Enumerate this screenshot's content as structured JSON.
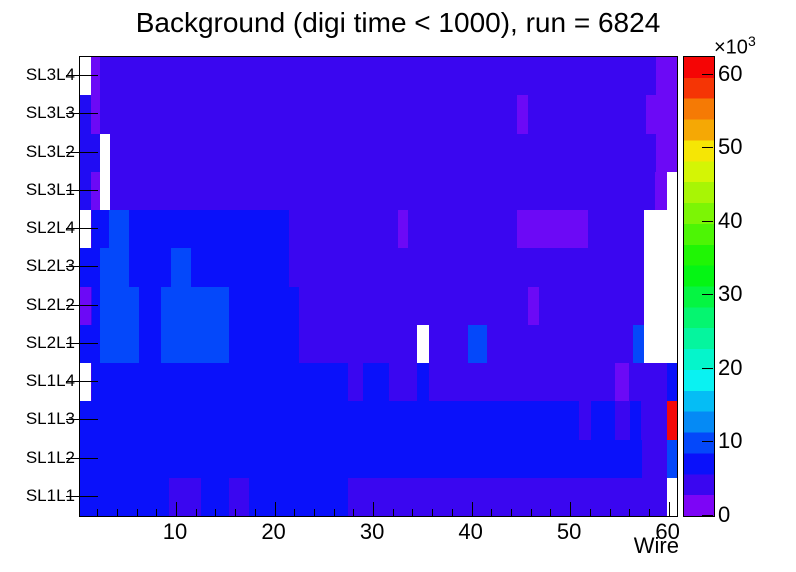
{
  "title": "Background (digi time < 1000), run = 6824",
  "x_axis": {
    "label": "Wire",
    "major_ticks": [
      10,
      20,
      30,
      40,
      50,
      60
    ],
    "minor_tick_step": 2
  },
  "y_axis": {
    "labels_top_to_bottom": [
      "SL3L4",
      "SL3L3",
      "SL3L2",
      "SL3L1",
      "SL2L4",
      "SL2L3",
      "SL2L2",
      "SL2L1",
      "SL1L4",
      "SL1L3",
      "SL1L2",
      "SL1L1"
    ]
  },
  "z_axis": {
    "scale_label": "×10",
    "scale_exponent": "3",
    "ticks": [
      0,
      10,
      20,
      30,
      40,
      50,
      60
    ]
  },
  "colors": {
    "indigo": "#3a06f0",
    "violet": "#6c09f6",
    "blue2": "#200cf3",
    "blue": "#0a11fa",
    "royal": "#0448fa",
    "red": "#f50808",
    "white": "#ffffff",
    "frame": "#000000",
    "background": "#ffffff"
  },
  "chart_data": {
    "type": "heatmap",
    "title": "Background (digi time < 1000), run = 6824",
    "xlabel": "Wire",
    "ylabel": "",
    "rows_top_to_bottom": [
      "SL3L4",
      "SL3L3",
      "SL3L2",
      "SL3L1",
      "SL2L4",
      "SL2L3",
      "SL2L2",
      "SL2L1",
      "SL1L4",
      "SL1L3",
      "SL1L2",
      "SL1L1"
    ],
    "x_range_wires": [
      0.25,
      60.85
    ],
    "z_range_counts": [
      0,
      62400
    ],
    "base_color": "indigo",
    "color_value_legend": {
      "white": "empty / no data",
      "violet": "0-3k",
      "indigo": "3-6k",
      "blue2": "6-9k",
      "blue": "9-12k",
      "royal": "12-16k",
      "red": "57-62k"
    },
    "palette_bottom_to_top": [
      "#7d05f6",
      "#3a06f0",
      "#0a11fa",
      "#0448fa",
      "#058af5",
      "#05bdf5",
      "#0af2f2",
      "#05f5cb",
      "#05f59e",
      "#05f570",
      "#05f542",
      "#05f514",
      "#20f505",
      "#4df505",
      "#7cf505",
      "#a8f505",
      "#d4f505",
      "#f5e605",
      "#f5a805",
      "#f57a05",
      "#f53505",
      "#f50505"
    ],
    "cells": [
      {
        "row": "SL3L4",
        "w0": 0.25,
        "w1": 1.4,
        "c": "white"
      },
      {
        "row": "SL3L4",
        "w0": 1.4,
        "w1": 2.3,
        "c": "violet"
      },
      {
        "row": "SL3L4",
        "w0": 58.7,
        "w1": 60.85,
        "c": "violet"
      },
      {
        "row": "SL3L3",
        "w0": 0.25,
        "w1": 1.4,
        "c": "blue2"
      },
      {
        "row": "SL3L3",
        "w0": 1.4,
        "w1": 2.3,
        "c": "violet"
      },
      {
        "row": "SL3L3",
        "w0": 44.6,
        "w1": 45.7,
        "c": "violet"
      },
      {
        "row": "SL3L3",
        "w0": 57.7,
        "w1": 60.85,
        "c": "violet"
      },
      {
        "row": "SL3L2",
        "w0": 0.25,
        "w1": 2.3,
        "c": "blue2"
      },
      {
        "row": "SL3L2",
        "w0": 2.3,
        "w1": 3.3,
        "c": "white"
      },
      {
        "row": "SL3L2",
        "w0": 58.7,
        "w1": 60.85,
        "c": "violet"
      },
      {
        "row": "SL3L1",
        "w0": 0.25,
        "w1": 1.4,
        "c": "blue2"
      },
      {
        "row": "SL3L1",
        "w0": 1.4,
        "w1": 2.3,
        "c": "violet"
      },
      {
        "row": "SL3L1",
        "w0": 2.3,
        "w1": 3.3,
        "c": "white"
      },
      {
        "row": "SL3L1",
        "w0": 58.6,
        "w1": 59.8,
        "c": "violet"
      },
      {
        "row": "SL3L1",
        "w0": 59.8,
        "w1": 60.85,
        "c": "white"
      },
      {
        "row": "SL2L4",
        "w0": 0.25,
        "w1": 1.4,
        "c": "white"
      },
      {
        "row": "SL2L4",
        "w0": 1.5,
        "w1": 21.5,
        "c": "blue"
      },
      {
        "row": "SL2L4",
        "w0": 3.2,
        "w1": 5.2,
        "c": "royal"
      },
      {
        "row": "SL2L4",
        "w0": 32.5,
        "w1": 33.5,
        "c": "violet"
      },
      {
        "row": "SL2L4",
        "w0": 44.6,
        "w1": 51.8,
        "c": "violet"
      },
      {
        "row": "SL2L4",
        "w0": 57.5,
        "w1": 60.85,
        "c": "white"
      },
      {
        "row": "SL2L3",
        "w0": 0.25,
        "w1": 21.5,
        "c": "blue"
      },
      {
        "row": "SL2L3",
        "w0": 2.3,
        "w1": 5.2,
        "c": "royal"
      },
      {
        "row": "SL2L3",
        "w0": 9.5,
        "w1": 11.5,
        "c": "royal"
      },
      {
        "row": "SL2L3",
        "w0": 57.5,
        "w1": 60.85,
        "c": "white"
      },
      {
        "row": "SL2L2",
        "w0": 1.5,
        "w1": 22.5,
        "c": "blue"
      },
      {
        "row": "SL2L2",
        "w0": 0.25,
        "w1": 1.4,
        "c": "violet"
      },
      {
        "row": "SL2L2",
        "w0": 2.3,
        "w1": 6.2,
        "c": "royal"
      },
      {
        "row": "SL2L2",
        "w0": 8.5,
        "w1": 15.4,
        "c": "royal"
      },
      {
        "row": "SL2L2",
        "w0": 45.7,
        "w1": 46.8,
        "c": "violet"
      },
      {
        "row": "SL2L2",
        "w0": 57.5,
        "w1": 60.85,
        "c": "white"
      },
      {
        "row": "SL2L1",
        "w0": 0.25,
        "w1": 22.5,
        "c": "blue"
      },
      {
        "row": "SL2L1",
        "w0": 2.3,
        "w1": 6.2,
        "c": "royal"
      },
      {
        "row": "SL2L1",
        "w0": 8.5,
        "w1": 15.4,
        "c": "royal"
      },
      {
        "row": "SL2L1",
        "w0": 34.5,
        "w1": 35.7,
        "c": "white"
      },
      {
        "row": "SL2L1",
        "w0": 39.6,
        "w1": 41.6,
        "c": "royal"
      },
      {
        "row": "SL2L1",
        "w0": 56.4,
        "w1": 57.5,
        "c": "royal"
      },
      {
        "row": "SL2L1",
        "w0": 57.5,
        "w1": 60.85,
        "c": "white"
      },
      {
        "row": "SL1L4",
        "w0": 0.25,
        "w1": 1.4,
        "c": "white"
      },
      {
        "row": "SL1L4",
        "w0": 1.5,
        "w1": 27.5,
        "c": "blue"
      },
      {
        "row": "SL1L4",
        "w0": 29,
        "w1": 31.6,
        "c": "blue"
      },
      {
        "row": "SL1L4",
        "w0": 34.5,
        "w1": 35.7,
        "c": "blue"
      },
      {
        "row": "SL1L4",
        "w0": 54.6,
        "w1": 56,
        "c": "violet"
      },
      {
        "row": "SL1L4",
        "w0": 59.8,
        "w1": 60.85,
        "c": "blue"
      },
      {
        "row": "SL1L3",
        "w0": 0.25,
        "w1": 50.9,
        "c": "blue"
      },
      {
        "row": "SL1L3",
        "w0": 52.1,
        "w1": 54.6,
        "c": "blue"
      },
      {
        "row": "SL1L3",
        "w0": 56.1,
        "w1": 57.2,
        "c": "blue"
      },
      {
        "row": "SL1L3",
        "w0": 59.8,
        "w1": 60.85,
        "c": "red"
      },
      {
        "row": "SL1L2",
        "w0": 0.25,
        "w1": 57.3,
        "c": "blue"
      },
      {
        "row": "SL1L2",
        "w0": 59.8,
        "w1": 60.85,
        "c": "royal"
      },
      {
        "row": "SL1L1",
        "w0": 0.25,
        "w1": 9.3,
        "c": "blue"
      },
      {
        "row": "SL1L1",
        "w0": 12.5,
        "w1": 15.4,
        "c": "blue"
      },
      {
        "row": "SL1L1",
        "w0": 17.4,
        "w1": 27.5,
        "c": "blue"
      },
      {
        "row": "SL1L1",
        "w0": 59.8,
        "w1": 60.85,
        "c": "white"
      }
    ]
  }
}
